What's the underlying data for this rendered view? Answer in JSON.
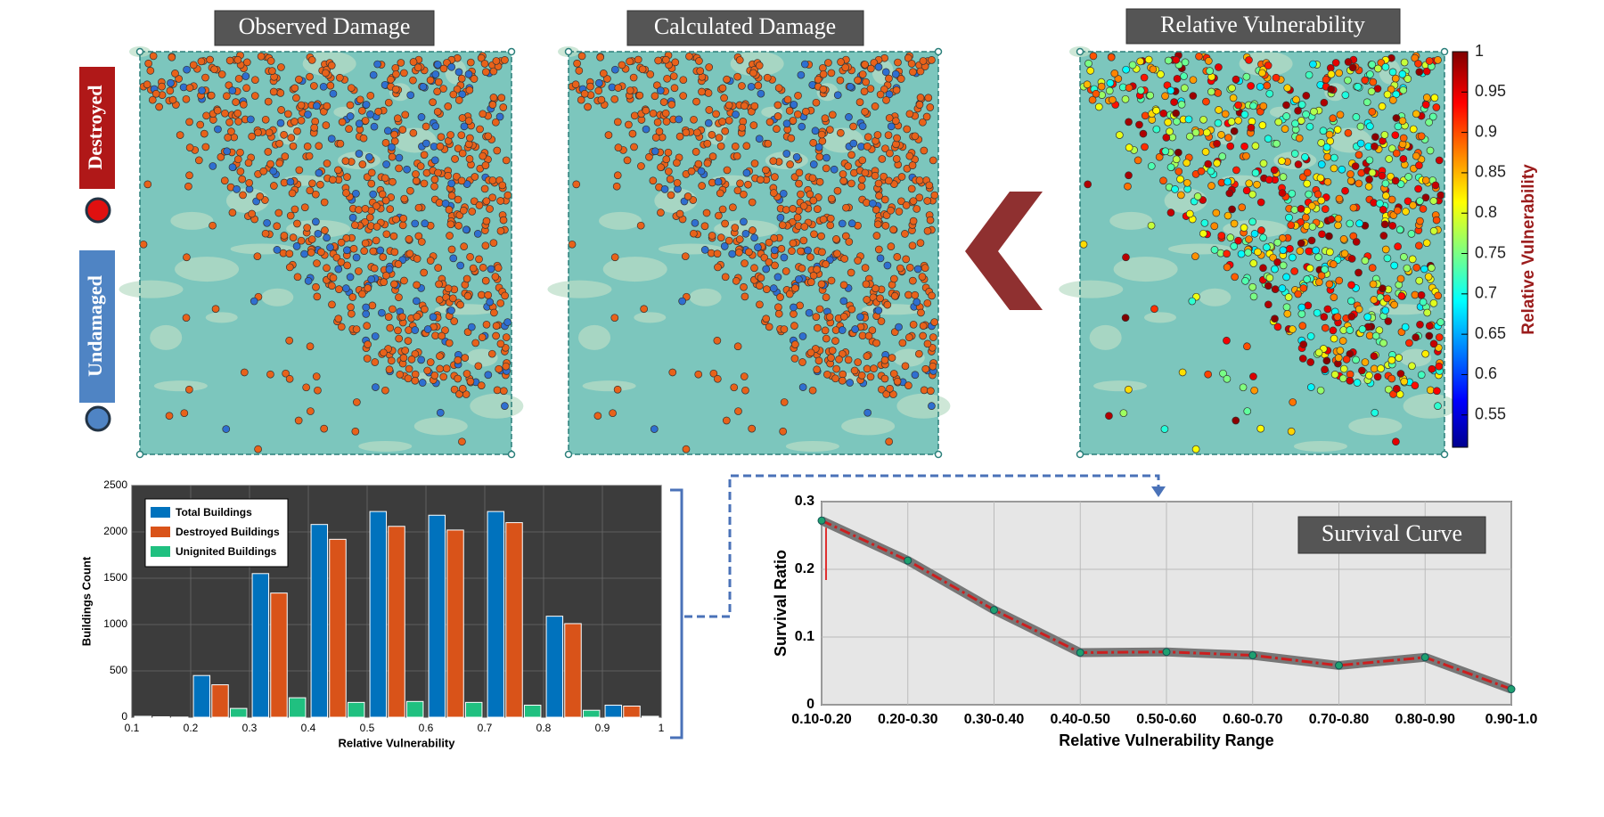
{
  "maps": {
    "observed_title": "Observed Damage",
    "calculated_title": "Calculated Damage",
    "relative_title": "Relative Vulnerability",
    "legend_destroyed": "Destroyed",
    "legend_undamaged": "Undamaged"
  },
  "colorbar": {
    "label": "Relative Vulnerability",
    "ylim": [
      0.51,
      1
    ],
    "yticks": [
      0.55,
      0.6,
      0.65,
      0.7,
      0.75,
      0.8,
      0.85,
      0.9,
      0.95,
      1
    ]
  },
  "chart_data": [
    {
      "type": "bar",
      "xlabel": "Relative Vulnerability",
      "ylabel": "Buildings Count",
      "x": [
        0.15,
        0.25,
        0.35,
        0.45,
        0.55,
        0.65,
        0.75,
        0.85,
        0.95
      ],
      "series": [
        {
          "name": "Total Buildings",
          "color": "#0072bd",
          "values": [
            10,
            450,
            1550,
            2080,
            2220,
            2180,
            2220,
            1090,
            130
          ]
        },
        {
          "name": "Destroyed Buildings",
          "color": "#d95319",
          "values": [
            5,
            350,
            1340,
            1920,
            2060,
            2020,
            2100,
            1010,
            120
          ]
        },
        {
          "name": "Unignited Buildings",
          "color": "#20c080",
          "values": [
            2,
            95,
            210,
            160,
            170,
            160,
            130,
            75,
            10
          ]
        }
      ],
      "xlim": [
        0.1,
        1
      ],
      "xticks": [
        0.1,
        0.2,
        0.3,
        0.4,
        0.5,
        0.6,
        0.7,
        0.8,
        0.9,
        1
      ],
      "ylim": [
        0,
        2500
      ],
      "yticks": [
        0,
        500,
        1000,
        1500,
        2000,
        2500
      ],
      "grid": true,
      "legend": "top-left"
    },
    {
      "type": "line",
      "annotation": "Survival Curve",
      "xlabel": "Relative Vulnerability Range",
      "ylabel": "Survival Ratio",
      "categories": [
        "0.10-0.20",
        "0.20-0.30",
        "0.30-0.40",
        "0.40-0.50",
        "0.50-0.60",
        "0.60-0.70",
        "0.70-0.80",
        "0.80-0.90",
        "0.90-1.0"
      ],
      "values": [
        0.272,
        0.213,
        0.14,
        0.077,
        0.078,
        0.073,
        0.058,
        0.07,
        0.023
      ],
      "color": "#cc1f1f",
      "ylim": [
        0,
        0.3
      ],
      "yticks": [
        0,
        0.1,
        0.2,
        0.3
      ],
      "grid": true
    }
  ]
}
